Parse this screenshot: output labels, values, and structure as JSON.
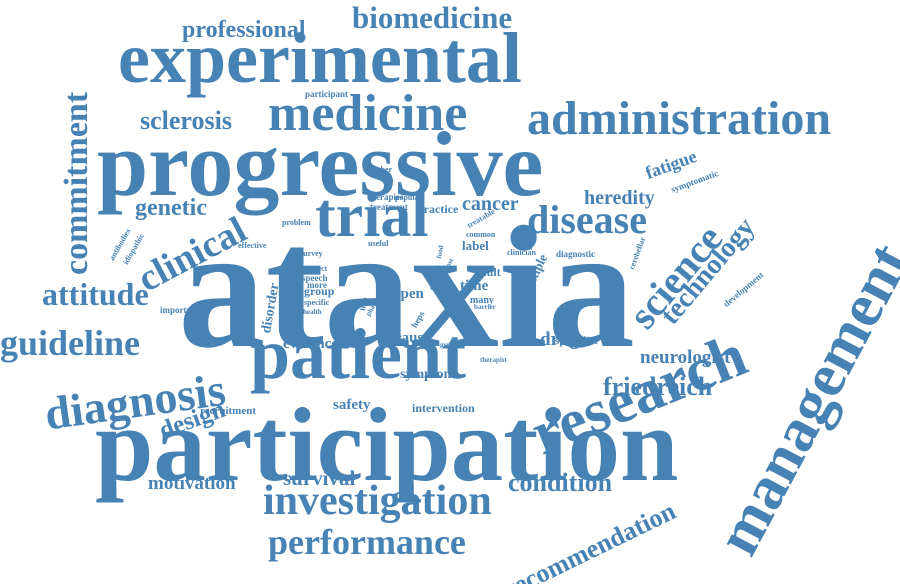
{
  "color": "#4682b4",
  "words": [
    "ataxia",
    "participation",
    "progressive",
    "experimental",
    "management",
    "patient",
    "research",
    "medicine",
    "administration",
    "investigation",
    "trial",
    "diagnosis",
    "commitment",
    "science",
    "disease",
    "biomedicine",
    "guideline",
    "performance",
    "clinical",
    "technology",
    "attitude",
    "recommendation",
    "professional",
    "sclerosis",
    "genetic",
    "friedreich",
    "condition",
    "design",
    "motivation",
    "survival",
    "cancer",
    "heredity",
    "drug",
    "neurologist",
    "fatigue",
    "symptom",
    "open",
    "time",
    "cause",
    "evidence",
    "safety",
    "intervention",
    "specialist",
    "recruitment",
    "group",
    "adult",
    "label",
    "multiple",
    "disorder",
    "participant",
    "number",
    "therapies",
    "treatment",
    "practice",
    "popular",
    "symptomatic",
    "cerebellar",
    "development",
    "diagnostic",
    "clinician",
    "common",
    "treatable",
    "antibodies",
    "idiopathic",
    "effective",
    "survey",
    "useful",
    "problem",
    "speech",
    "aspect",
    "more",
    "specific",
    "important",
    "health",
    "general",
    "therapist",
    "barrier",
    "many",
    "care",
    "life",
    "phase",
    "most",
    "heps",
    "high",
    "need",
    "data",
    "food"
  ]
}
